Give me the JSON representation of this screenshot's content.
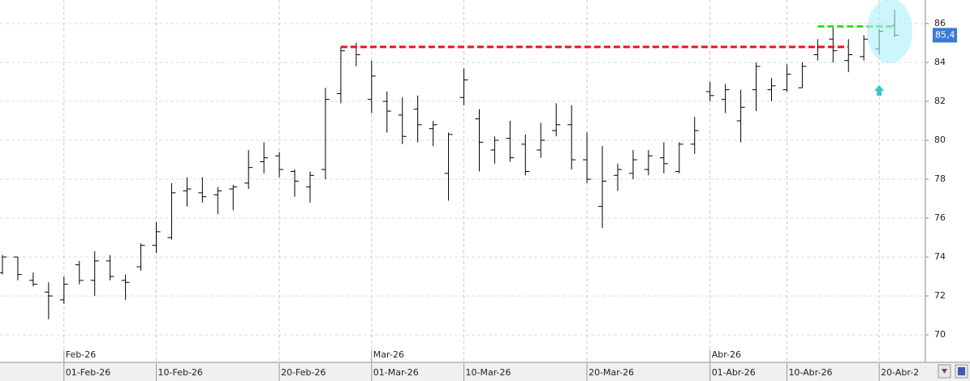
{
  "chart_data": {
    "type": "ohlc",
    "color": "#000000",
    "grid": true,
    "ylim": [
      68.67,
      87.21
    ],
    "yticks": [
      70,
      72,
      74,
      76,
      78,
      80,
      82,
      84,
      86
    ],
    "categories": [
      null,
      null,
      null,
      null,
      "01-Feb-26",
      null,
      null,
      null,
      null,
      null,
      "10-Feb-26",
      null,
      null,
      null,
      null,
      null,
      null,
      null,
      "20-Feb-26",
      null,
      null,
      null,
      null,
      null,
      "01-Mar-26",
      null,
      null,
      null,
      null,
      null,
      "10-Mar-26",
      null,
      null,
      null,
      null,
      null,
      null,
      null,
      "20-Mar-26",
      null,
      null,
      null,
      null,
      null,
      null,
      null,
      "01-Abr-26",
      null,
      null,
      null,
      null,
      "10-Abr-26",
      null,
      null,
      null,
      null,
      null,
      "20-Abr-2",
      null
    ],
    "months": [
      {
        "label": "Feb-26",
        "index": 4
      },
      {
        "label": "Mar-26",
        "index": 24
      },
      {
        "label": "Abr-26",
        "index": 46
      }
    ],
    "open": [
      73.2,
      74,
      72.8,
      72.2,
      71.8,
      73.6,
      72.8,
      73.8,
      72.8,
      73.5,
      74.6,
      75.0,
      77.4,
      77.3,
      77.2,
      77.5,
      77.8,
      78.9,
      79.2,
      78.4,
      77.6,
      78.5,
      82.4,
      84.8,
      82.1,
      82.0,
      81.3,
      81.6,
      80.6,
      78.3,
      82.2,
      81.1,
      79.5,
      80.1,
      79.8,
      79.5,
      80.5,
      80.8,
      79.0,
      76.6,
      78.2,
      78.3,
      78.5,
      79.1,
      78.4,
      79.8,
      82.5,
      82.1,
      81.0,
      82.6,
      82.6,
      82.6,
      82.7,
      84.4,
      85.2,
      84.1,
      84.3,
      84.7,
      85.9
    ],
    "high": [
      74.1,
      74,
      73.2,
      72.7,
      73,
      73.8,
      74.3,
      74.1,
      73.1,
      74.7,
      75.8,
      77.8,
      78.1,
      78.1,
      77.6,
      77.7,
      79.5,
      79.9,
      79.4,
      78.5,
      78.4,
      82.7,
      84.8,
      85.0,
      84.1,
      82.5,
      82.2,
      82.3,
      81.0,
      80.4,
      83.7,
      81.6,
      80.2,
      81.0,
      80.3,
      80.9,
      81.9,
      81.8,
      80.4,
      79.7,
      78.8,
      79.5,
      79.5,
      79.9,
      79.9,
      81.2,
      83.0,
      82.9,
      82.6,
      84.0,
      83.2,
      83.9,
      84.0,
      85.2,
      85.8,
      85.2,
      85.4,
      85.7,
      86.7
    ],
    "low": [
      73.1,
      72.8,
      72.5,
      70.8,
      71.6,
      72.6,
      72,
      72.8,
      71.8,
      73.3,
      74.2,
      74.9,
      76.6,
      76.8,
      76.2,
      76.4,
      77.5,
      78.3,
      78.1,
      77.1,
      76.8,
      78.0,
      81.9,
      83.8,
      81.4,
      80.4,
      79.8,
      79.9,
      79.7,
      76.9,
      81.8,
      78.4,
      78.8,
      78.9,
      78.2,
      79.1,
      80.2,
      78.5,
      77.8,
      75.5,
      77.4,
      78.0,
      78.2,
      78.3,
      78.3,
      79.3,
      82.0,
      81.4,
      79.9,
      81.5,
      82.0,
      82.5,
      82.7,
      84.1,
      84.0,
      83.5,
      84.1,
      84.4,
      85.3
    ],
    "close": [
      74.0,
      73.1,
      72.6,
      72.0,
      72.6,
      72.8,
      73.8,
      73,
      72.7,
      74.6,
      75.3,
      77.3,
      77.5,
      77.1,
      77.4,
      77.6,
      78.6,
      79.1,
      78.5,
      77.9,
      78.2,
      82.1,
      84.6,
      84.4,
      83.3,
      81.5,
      80.2,
      80.8,
      80.8,
      80.3,
      83.1,
      79.9,
      80,
      79.1,
      78.4,
      80.0,
      80.8,
      79.0,
      78.0,
      77.9,
      78.5,
      79.0,
      79.2,
      78.8,
      79.8,
      80.5,
      82.3,
      82.6,
      81.7,
      83.8,
      82.8,
      83.4,
      83.8,
      84.8,
      84.6,
      84.4,
      85.2,
      85.6,
      85.4
    ],
    "levels": [
      {
        "value": 84.8,
        "color": "#e8161b",
        "from": 22,
        "to": 55
      },
      {
        "value": 85.85,
        "color": "#33dd22",
        "from": 53,
        "to": 58
      }
    ],
    "last_price": {
      "value": 85.4,
      "label": "85,4"
    }
  }
}
